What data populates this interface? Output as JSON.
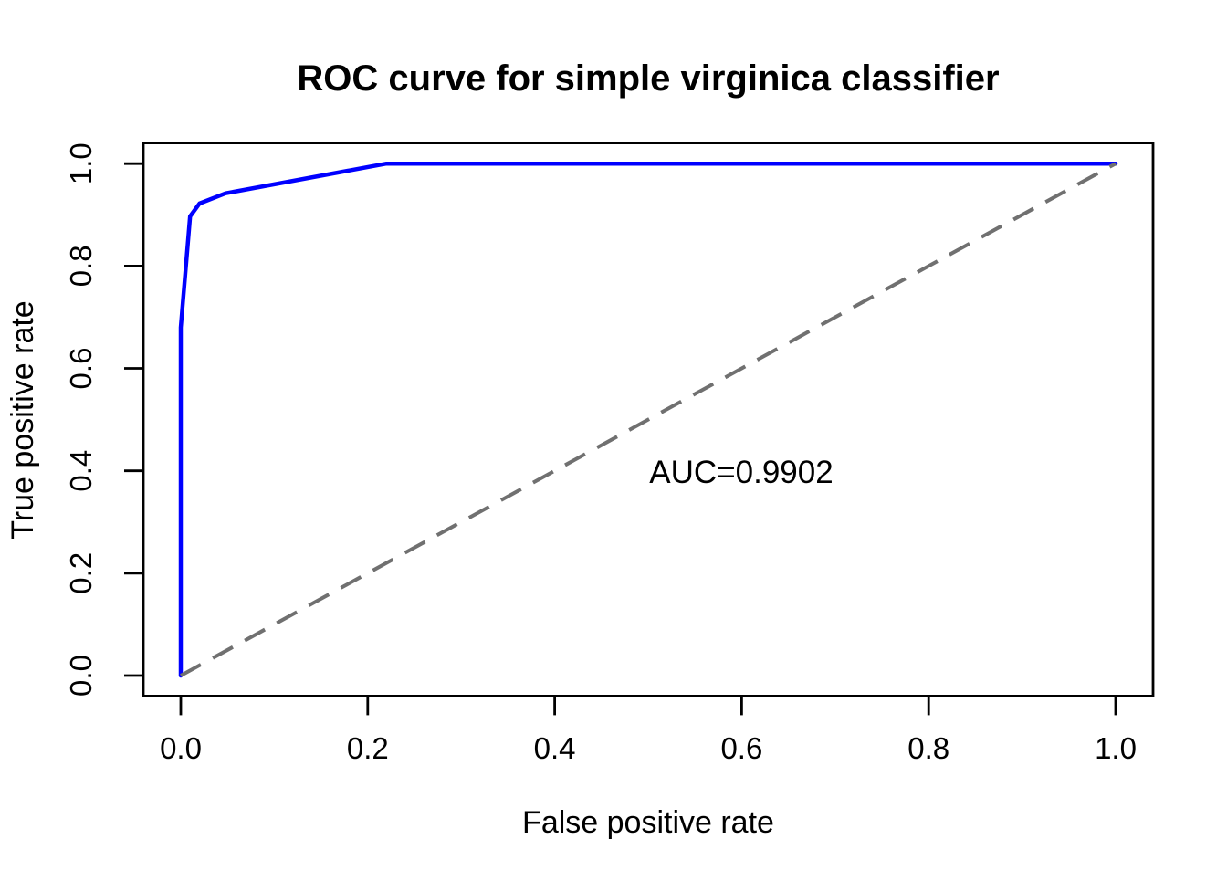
{
  "title": "ROC curve for simple virginica classifier",
  "chart_data": {
    "type": "line",
    "title": "ROC curve for simple virginica classifier",
    "xlabel": "False positive rate",
    "ylabel": "True positive rate",
    "xlim": [
      0,
      1
    ],
    "ylim": [
      0,
      1
    ],
    "grid": false,
    "legend_position": "none",
    "x_ticks": [
      {
        "value": 0.0,
        "label": "0.0"
      },
      {
        "value": 0.2,
        "label": "0.2"
      },
      {
        "value": 0.4,
        "label": "0.4"
      },
      {
        "value": 0.6,
        "label": "0.6"
      },
      {
        "value": 0.8,
        "label": "0.8"
      },
      {
        "value": 1.0,
        "label": "1.0"
      }
    ],
    "y_ticks": [
      {
        "value": 0.0,
        "label": "0.0"
      },
      {
        "value": 0.2,
        "label": "0.2"
      },
      {
        "value": 0.4,
        "label": "0.4"
      },
      {
        "value": 0.6,
        "label": "0.6"
      },
      {
        "value": 0.8,
        "label": "0.8"
      },
      {
        "value": 1.0,
        "label": "1.0"
      }
    ],
    "series": [
      {
        "name": "roc-curve",
        "color": "#0000ff",
        "style": "solid",
        "width": 4.5,
        "points": [
          [
            0.0,
            0.0
          ],
          [
            0.0,
            0.68
          ],
          [
            0.01,
            0.897
          ],
          [
            0.02,
            0.922
          ],
          [
            0.048,
            0.942
          ],
          [
            0.22,
            1.0
          ],
          [
            1.0,
            1.0
          ]
        ]
      },
      {
        "name": "chance-diagonal",
        "color": "#707070",
        "style": "dashed",
        "width": 4,
        "points": [
          [
            0.0,
            0.0
          ],
          [
            1.0,
            1.0
          ]
        ]
      }
    ],
    "annotations": [
      {
        "text": "AUC=0.9902",
        "x": 0.6,
        "y": 0.4,
        "color": "#0000ff"
      }
    ]
  },
  "colors": {
    "curve": "#0000ff",
    "diagonal": "#707070",
    "axis": "#000000",
    "background": "#ffffff"
  }
}
